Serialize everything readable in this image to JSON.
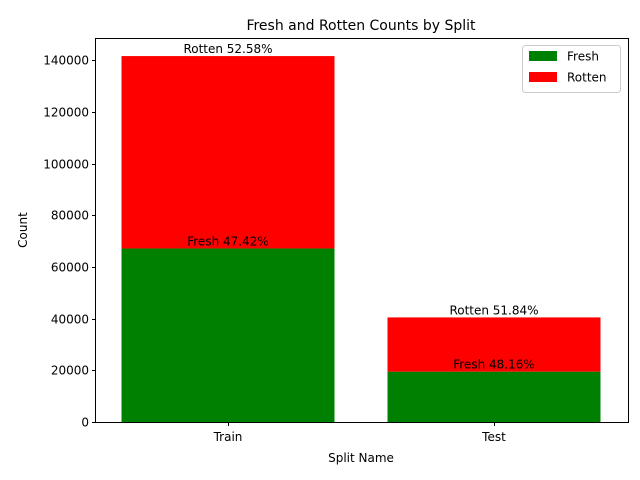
{
  "chart_data": {
    "type": "bar",
    "stacked": true,
    "title": "Fresh and Rotten Counts by Split",
    "xlabel": "Split Name",
    "ylabel": "Count",
    "categories": [
      "Train",
      "Test"
    ],
    "series": [
      {
        "name": "Fresh",
        "color": "#008000",
        "values": [
          67200,
          19500
        ],
        "labels": [
          "Fresh 47.42%",
          "Fresh 48.16%"
        ]
      },
      {
        "name": "Rotten",
        "color": "#ff0000",
        "values": [
          74500,
          21000
        ],
        "labels": [
          "Rotten 52.58%",
          "Rotten 51.84%"
        ]
      }
    ],
    "ylim": [
      0,
      148700
    ],
    "yticks": [
      0,
      20000,
      40000,
      60000,
      80000,
      100000,
      120000,
      140000
    ],
    "grid": false,
    "legend": "top-right"
  }
}
